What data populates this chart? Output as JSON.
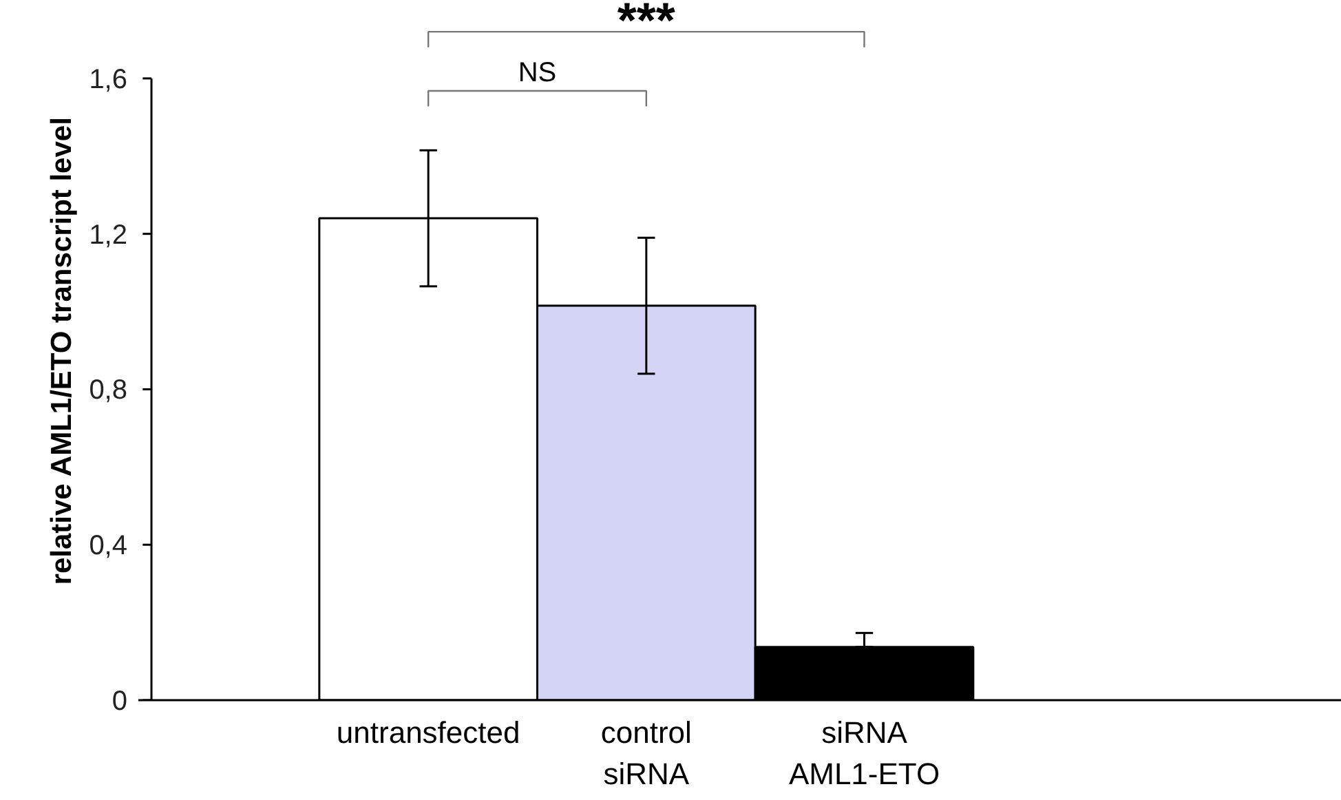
{
  "chart_data": {
    "type": "bar",
    "ylabel": "relative AML1/ETO transcript level",
    "categories": [
      "untransfected",
      "control\nsiRNA",
      "siRNA\nAML1-ETO"
    ],
    "values": [
      1.24,
      1.015,
      0.137
    ],
    "colors": [
      "#ffffff",
      "#d4d4f7",
      "#000000"
    ],
    "errors": [
      [
        1.065,
        1.415
      ],
      [
        0.84,
        1.19
      ],
      [
        0.137,
        0.173
      ]
    ],
    "ylim": [
      0,
      1.6
    ],
    "yticks": [
      0,
      {
        "value": 0.4,
        "label": "0,4"
      },
      {
        "value": 0.8,
        "label": "0,8"
      },
      {
        "value": 1.2,
        "label": "1,2"
      },
      {
        "value": 1.6,
        "label": "1,6"
      }
    ],
    "grid": false,
    "annotations": [
      "NS",
      "***"
    ]
  }
}
